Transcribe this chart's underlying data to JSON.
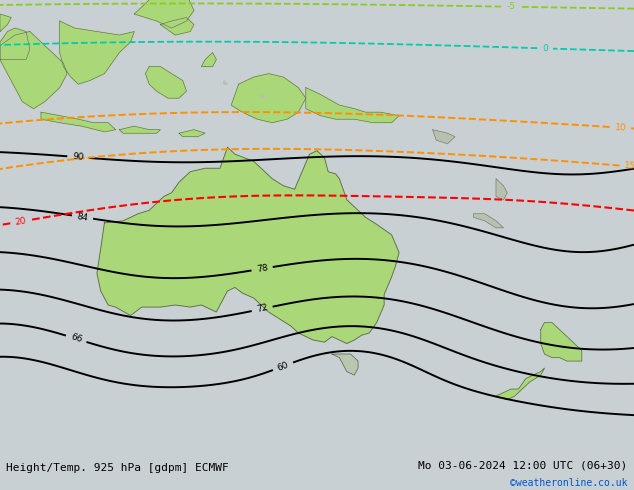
{
  "title_left": "Height/Temp. 925 hPa [gdpm] ECMWF",
  "title_right": "Mo 03-06-2024 12:00 UTC (06+30)",
  "watermark": "©weatheronline.co.uk",
  "watermark_color": "#0055cc",
  "bg_color": "#c8d0d4",
  "australia_fill": "#aad878",
  "island_fill": "#aad878",
  "nz_fill": "#aad878",
  "land_dark": "#c0c8c0",
  "figsize": [
    6.34,
    4.9
  ],
  "dpi": 100,
  "xlim": [
    100,
    185
  ],
  "ylim": [
    -55,
    10
  ],
  "title_fontsize": 8,
  "label_fontsize": 6
}
